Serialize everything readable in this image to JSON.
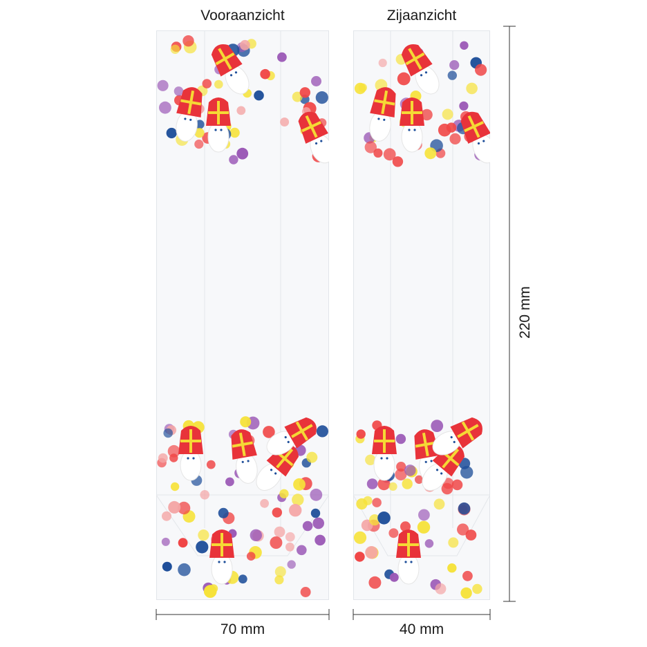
{
  "views": {
    "front_label": "Vooraanzicht",
    "side_label": "Zijaanzicht"
  },
  "dimensions": {
    "width": "70 mm",
    "depth": "40 mm",
    "height": "220 mm"
  },
  "colors": {
    "red": "#f04646",
    "pink": "#f4a6a6",
    "yellow": "#f6e23a",
    "purple": "#9b59b6",
    "blue": "#1f4f9a",
    "mitre_red": "#e8333a",
    "mitre_cross": "#f5d935",
    "bag_edge": "#d9dde2"
  }
}
